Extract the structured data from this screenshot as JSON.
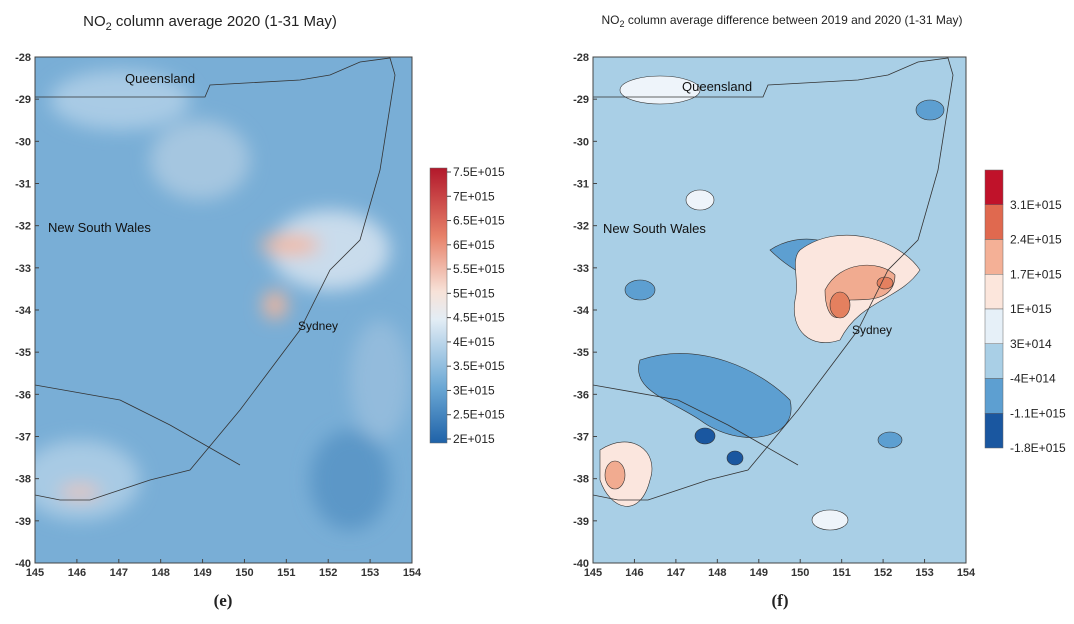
{
  "left": {
    "title": {
      "main": "NO",
      "sub": "2",
      "rest": " column average 2020 (1-31 May)"
    },
    "y_ticks": [
      "-28",
      "-29",
      "-30",
      "-31",
      "-32",
      "-33",
      "-34",
      "-35",
      "-36",
      "-37",
      "-38",
      "-39",
      "-40"
    ],
    "x_ticks": [
      "145",
      "146",
      "147",
      "148",
      "149",
      "150",
      "151",
      "152",
      "153",
      "154"
    ],
    "places": {
      "queensland": "Queensland",
      "nsw": "New South Wales",
      "sydney": "Sydney"
    },
    "colorbar": [
      "7.5E+015",
      "7E+015",
      "6.5E+015",
      "6E+015",
      "5.5E+015",
      "5E+015",
      "4.5E+015",
      "4E+015",
      "3.5E+015",
      "3E+015",
      "2.5E+015",
      "2E+015"
    ],
    "caption": "(e)"
  },
  "right": {
    "title": {
      "main": "NO",
      "sub": "2",
      "rest": " column average difference between 2019 and 2020 (1-31 May)"
    },
    "y_ticks": [
      "-28",
      "-29",
      "-30",
      "-31",
      "-32",
      "-33",
      "-34",
      "-35",
      "-36",
      "-37",
      "-38",
      "-39",
      "-40"
    ],
    "x_ticks": [
      "145",
      "146",
      "147",
      "148",
      "149",
      "150",
      "151",
      "152",
      "153",
      "154"
    ],
    "places": {
      "queensland": "Queensland",
      "nsw": "New South Wales",
      "sydney": "Sydney"
    },
    "colorbar": [
      "3.1E+015",
      "2.4E+015",
      "1.7E+015",
      "1E+015",
      "3E+014",
      "-4E+014",
      "-1.1E+015",
      "-1.8E+015"
    ],
    "caption": "(f)"
  }
}
